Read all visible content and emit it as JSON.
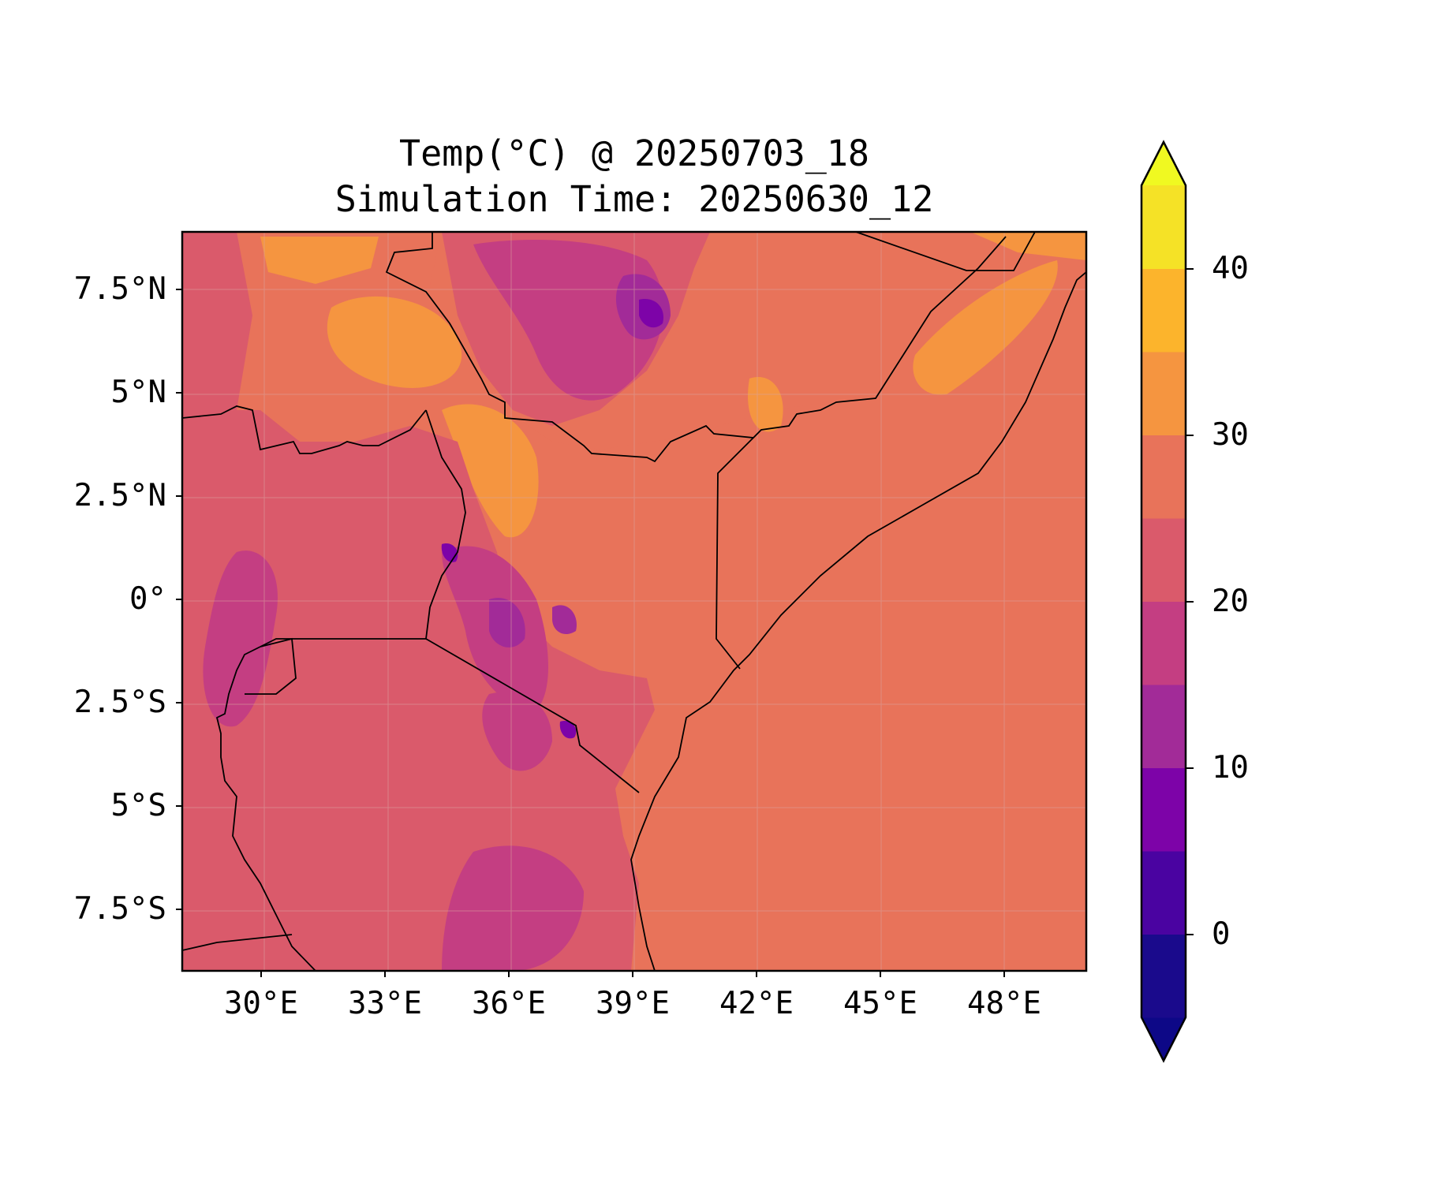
{
  "title": {
    "line1": "Temp(°C) @ 20250703_18",
    "line2": "Simulation Time: 20250630_12"
  },
  "axes": {
    "lat_ticks": [
      "7.5°N",
      "5°N",
      "2.5°N",
      "0°",
      "2.5°S",
      "5°S",
      "7.5°S"
    ],
    "lon_ticks": [
      "30°E",
      "33°E",
      "36°E",
      "39°E",
      "42°E",
      "45°E",
      "48°E"
    ],
    "lon_range": [
      28,
      50
    ],
    "lat_range": [
      -9,
      9
    ]
  },
  "colorbar": {
    "ticks": [
      "40",
      "30",
      "20",
      "10",
      "0"
    ],
    "levels": [
      -5,
      0,
      5,
      10,
      15,
      20,
      25,
      30,
      35,
      40,
      45
    ],
    "colors": [
      "#1a0a8c",
      "#4a03a1",
      "#7d03a8",
      "#a22b98",
      "#c43e82",
      "#da5a6b",
      "#e8735a",
      "#f59540",
      "#fcb42c",
      "#f5e226"
    ],
    "extend": "both",
    "under_color": "#0d0887",
    "over_color": "#f0f921"
  },
  "map": {
    "variable": "2 m temperature",
    "region": "East Africa",
    "dominant_land_color": "#da5a6b",
    "ocean_color": "#e8735a",
    "grid": true,
    "coastlines": true,
    "borders": true
  }
}
